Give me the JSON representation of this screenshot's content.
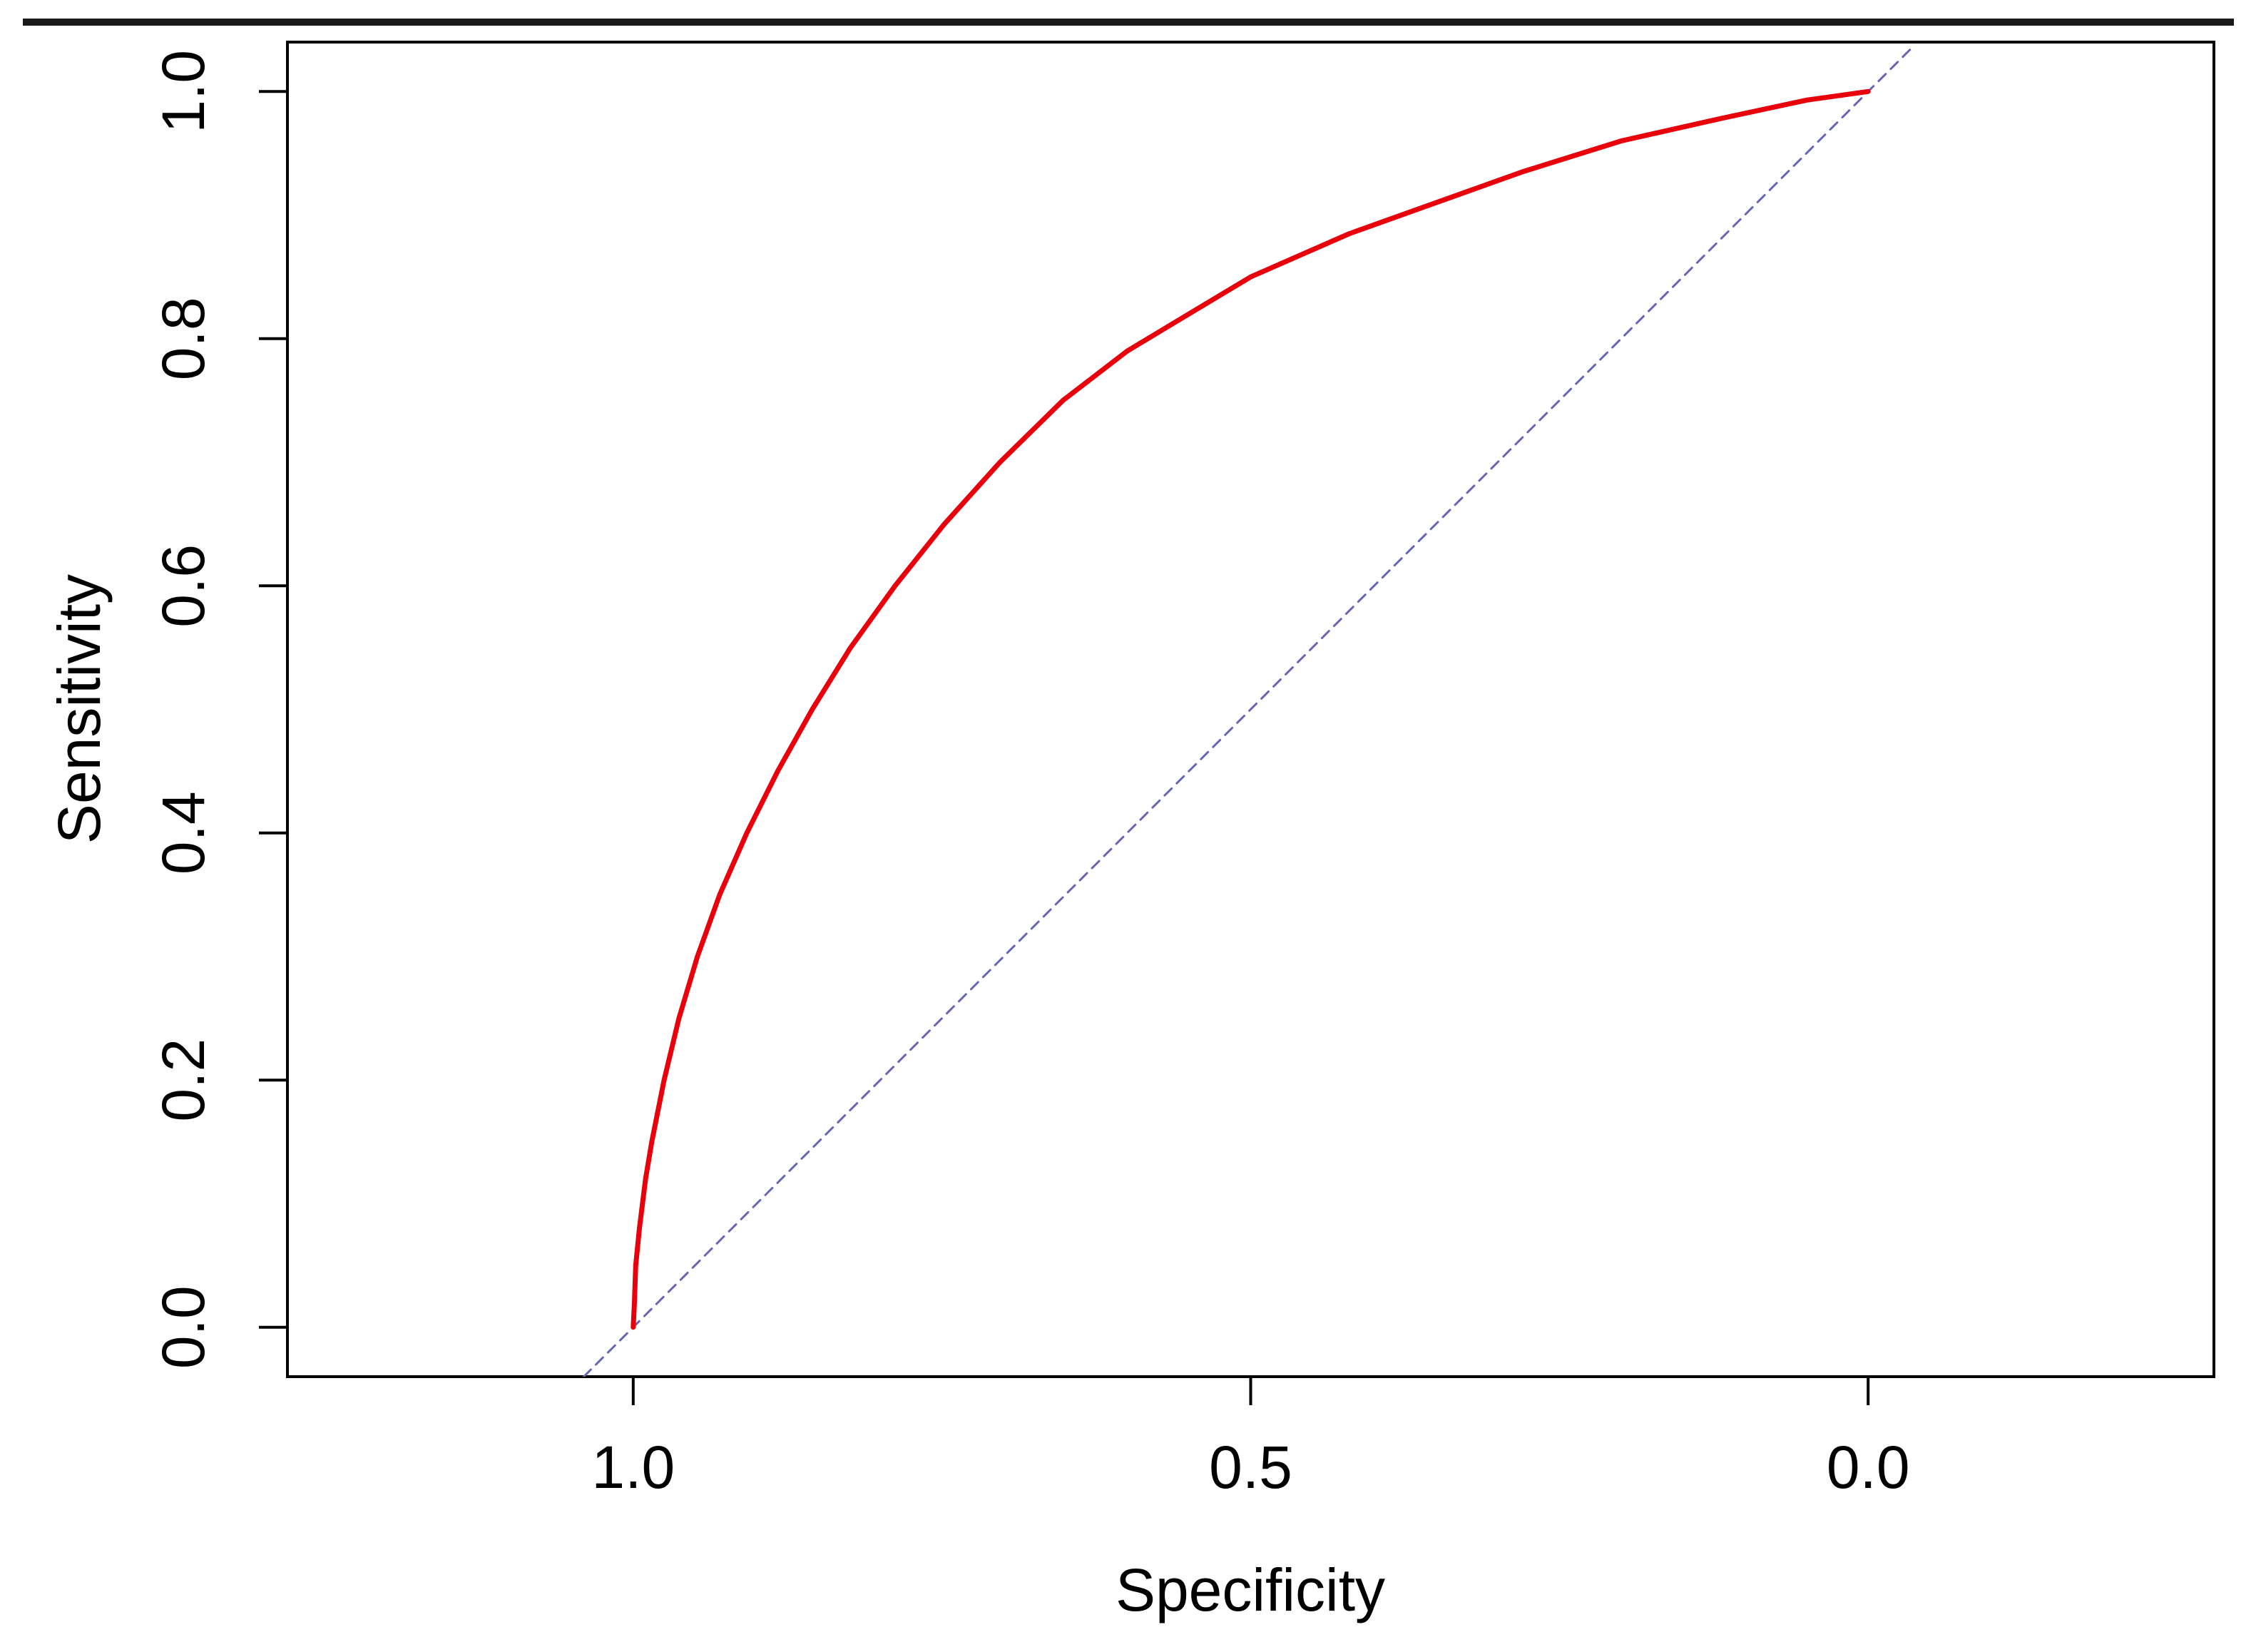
{
  "chart_data": {
    "type": "line",
    "title": "",
    "xlabel": "Specificity",
    "ylabel": "Sensitivity",
    "x_reversed": true,
    "xlim": [
      1.28,
      -0.28
    ],
    "ylim": [
      -0.04,
      1.04
    ],
    "x_ticks": [
      {
        "value": 1.0,
        "label": "1.0"
      },
      {
        "value": 0.5,
        "label": "0.5"
      },
      {
        "value": 0.0,
        "label": "0.0"
      }
    ],
    "y_ticks": [
      {
        "value": 0.0,
        "label": "0.0"
      },
      {
        "value": 0.2,
        "label": "0.2"
      },
      {
        "value": 0.4,
        "label": "0.4"
      },
      {
        "value": 0.6,
        "label": "0.6"
      },
      {
        "value": 0.8,
        "label": "0.8"
      },
      {
        "value": 1.0,
        "label": "1.0"
      }
    ],
    "grid": false,
    "legend": "none",
    "series": [
      {
        "color": "#e8000b",
        "points": [
          {
            "x": 1.0,
            "y": 0.0
          },
          {
            "x": 0.999,
            "y": 0.02
          },
          {
            "x": 0.998,
            "y": 0.05
          },
          {
            "x": 0.995,
            "y": 0.08
          },
          {
            "x": 0.99,
            "y": 0.12
          },
          {
            "x": 0.985,
            "y": 0.15
          },
          {
            "x": 0.975,
            "y": 0.2
          },
          {
            "x": 0.963,
            "y": 0.25
          },
          {
            "x": 0.948,
            "y": 0.3
          },
          {
            "x": 0.93,
            "y": 0.35
          },
          {
            "x": 0.908,
            "y": 0.4
          },
          {
            "x": 0.883,
            "y": 0.45
          },
          {
            "x": 0.855,
            "y": 0.5
          },
          {
            "x": 0.824,
            "y": 0.55
          },
          {
            "x": 0.788,
            "y": 0.6
          },
          {
            "x": 0.748,
            "y": 0.65
          },
          {
            "x": 0.703,
            "y": 0.7
          },
          {
            "x": 0.652,
            "y": 0.75
          },
          {
            "x": 0.6,
            "y": 0.79
          },
          {
            "x": 0.55,
            "y": 0.82
          },
          {
            "x": 0.5,
            "y": 0.85
          },
          {
            "x": 0.42,
            "y": 0.885
          },
          {
            "x": 0.35,
            "y": 0.91
          },
          {
            "x": 0.28,
            "y": 0.935
          },
          {
            "x": 0.2,
            "y": 0.96
          },
          {
            "x": 0.12,
            "y": 0.978
          },
          {
            "x": 0.05,
            "y": 0.993
          },
          {
            "x": 0.0,
            "y": 1.0
          }
        ]
      },
      {
        "color": "#6b66b3",
        "dashed": true,
        "points": [
          {
            "x": 1.04,
            "y": -0.04
          },
          {
            "x": -0.034,
            "y": 1.034
          }
        ]
      }
    ]
  },
  "colors": {
    "frame": "#000000",
    "background": "#ffffff"
  }
}
